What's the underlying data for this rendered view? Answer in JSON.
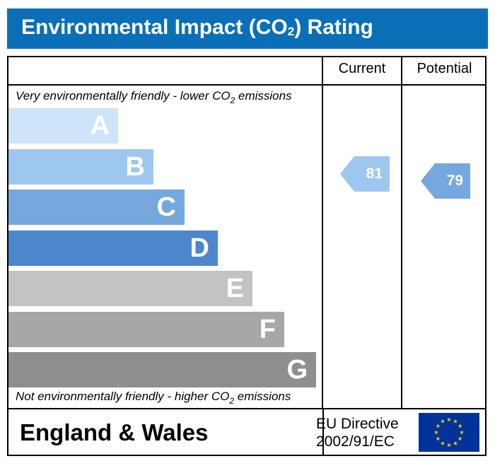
{
  "title": {
    "main": "Environmental Impact (CO",
    "sub": "2",
    "tail": ") Rating"
  },
  "columns": {
    "current": "Current",
    "potential": "Potential"
  },
  "notes": {
    "top_pre": "Very environmentally friendly - lower CO",
    "top_sub": "2",
    "top_post": " emissions",
    "bottom_pre": "Not environmentally friendly - higher CO",
    "bottom_sub": "2",
    "bottom_post": " emissions"
  },
  "chart_data": {
    "type": "bar",
    "categories": [
      "A",
      "B",
      "C",
      "D",
      "E",
      "F",
      "G"
    ],
    "colors": [
      "#cde4fa",
      "#9ec7f0",
      "#75a8dc",
      "#4e86cc",
      "#c3c3c3",
      "#a7a7a7",
      "#8f8f8f"
    ],
    "current": {
      "value": 81,
      "band": "B",
      "color": "#9ec7f0"
    },
    "potential": {
      "value": 79,
      "band": "B",
      "color": "#75a8dc"
    }
  },
  "footer": {
    "country": "England & Wales",
    "directive_line1": "EU Directive",
    "directive_line2": "2002/91/EC"
  },
  "icons": {
    "flag": "eu-flag-icon"
  }
}
